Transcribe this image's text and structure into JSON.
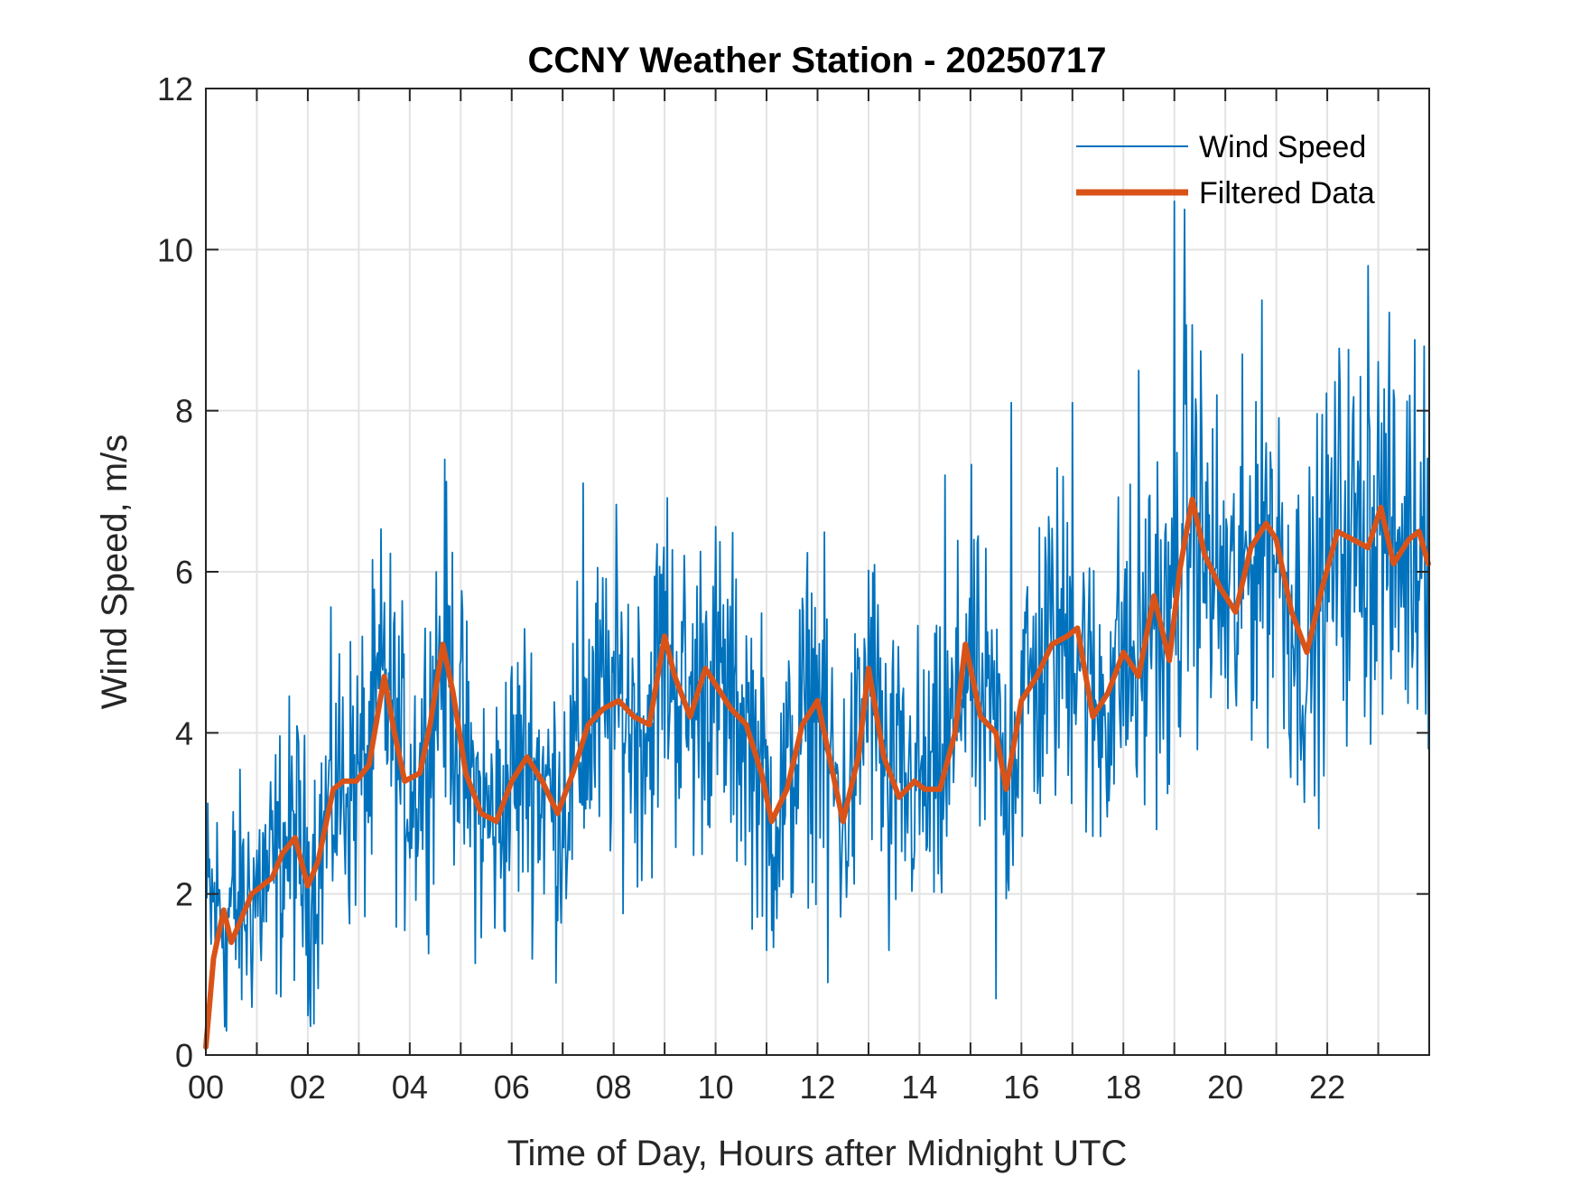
{
  "chart_data": {
    "type": "line",
    "title": "CCNY Weather Station - 20250717",
    "xlabel": "Time of Day, Hours after Midnight UTC",
    "ylabel": "Wind Speed, m/s",
    "xlim": [
      0,
      24
    ],
    "ylim": [
      0,
      12
    ],
    "grid": true,
    "legend_position": "top-right",
    "x_ticks": [
      0,
      1,
      2,
      3,
      4,
      5,
      6,
      7,
      8,
      9,
      10,
      11,
      12,
      13,
      14,
      15,
      16,
      17,
      18,
      19,
      20,
      21,
      22,
      23
    ],
    "x_tick_labels": [
      "00",
      "02",
      "04",
      "06",
      "08",
      "10",
      "12",
      "14",
      "16",
      "18",
      "20",
      "22"
    ],
    "x_tick_label_values": [
      0,
      2,
      4,
      6,
      8,
      10,
      12,
      14,
      16,
      18,
      20,
      22
    ],
    "y_ticks": [
      0,
      2,
      4,
      6,
      8,
      10,
      12
    ],
    "y_tick_labels": [
      "0",
      "2",
      "4",
      "6",
      "8",
      "10",
      "12"
    ],
    "colors": {
      "wind_speed": "#0072BD",
      "filtered": "#D95319"
    },
    "series": [
      {
        "name": "Wind Speed",
        "note": "raw 1-minute samples, noisy; amplitude envelope approximated",
        "x_range": [
          0,
          24
        ],
        "noise_amplitude": 1.4,
        "peaks": [
          {
            "x": 19.0,
            "y": 10.6
          },
          {
            "x": 19.2,
            "y": 10.5
          },
          {
            "x": 22.8,
            "y": 9.8
          },
          {
            "x": 23.9,
            "y": 8.8
          },
          {
            "x": 17.0,
            "y": 8.1
          },
          {
            "x": 15.8,
            "y": 8.1
          },
          {
            "x": 18.3,
            "y": 8.5
          },
          {
            "x": 7.4,
            "y": 7.1
          },
          {
            "x": 14.5,
            "y": 7.2
          }
        ],
        "troughs": [
          {
            "x": 12.2,
            "y": 0.9
          },
          {
            "x": 15.5,
            "y": 0.7
          },
          {
            "x": 0.4,
            "y": 0.3
          },
          {
            "x": 11.0,
            "y": 1.3
          },
          {
            "x": 13.4,
            "y": 1.3
          }
        ]
      },
      {
        "name": "Filtered Data",
        "x": [
          0.0,
          0.15,
          0.35,
          0.5,
          0.7,
          0.9,
          1.1,
          1.3,
          1.5,
          1.75,
          2.0,
          2.2,
          2.5,
          2.7,
          2.95,
          3.2,
          3.5,
          3.7,
          3.9,
          4.2,
          4.4,
          4.65,
          4.85,
          5.1,
          5.4,
          5.7,
          6.0,
          6.3,
          6.6,
          6.9,
          7.2,
          7.5,
          7.8,
          8.1,
          8.4,
          8.7,
          9.0,
          9.2,
          9.5,
          9.8,
          10.0,
          10.3,
          10.6,
          10.9,
          11.1,
          11.4,
          11.7,
          12.0,
          12.3,
          12.5,
          12.8,
          13.0,
          13.3,
          13.6,
          13.9,
          14.1,
          14.4,
          14.7,
          14.9,
          15.2,
          15.5,
          15.7,
          16.0,
          16.3,
          16.6,
          16.9,
          17.1,
          17.4,
          17.7,
          18.0,
          18.3,
          18.6,
          18.9,
          19.1,
          19.35,
          19.6,
          19.9,
          20.2,
          20.5,
          20.8,
          21.0,
          21.3,
          21.6,
          21.9,
          22.2,
          22.5,
          22.8,
          23.05,
          23.3,
          23.6,
          23.8,
          23.98
        ],
        "y": [
          0.1,
          1.2,
          1.8,
          1.4,
          1.7,
          2.0,
          2.1,
          2.2,
          2.5,
          2.7,
          2.1,
          2.4,
          3.3,
          3.4,
          3.4,
          3.6,
          4.7,
          4.0,
          3.4,
          3.5,
          4.1,
          5.1,
          4.5,
          3.5,
          3.0,
          2.9,
          3.4,
          3.7,
          3.4,
          3.0,
          3.5,
          4.1,
          4.3,
          4.4,
          4.2,
          4.1,
          5.2,
          4.7,
          4.2,
          4.8,
          4.6,
          4.3,
          4.1,
          3.5,
          2.9,
          3.3,
          4.1,
          4.4,
          3.5,
          2.9,
          3.7,
          4.8,
          3.7,
          3.2,
          3.4,
          3.3,
          3.3,
          4.0,
          5.1,
          4.2,
          4.0,
          3.3,
          4.4,
          4.7,
          5.1,
          5.2,
          5.3,
          4.2,
          4.5,
          5.0,
          4.7,
          5.7,
          4.9,
          6.0,
          6.9,
          6.2,
          5.8,
          5.5,
          6.3,
          6.6,
          6.4,
          5.5,
          5.0,
          5.8,
          6.5,
          6.4,
          6.3,
          6.8,
          6.1,
          6.4,
          6.5,
          6.1
        ]
      }
    ]
  },
  "legend": {
    "items": [
      {
        "label": "Wind Speed"
      },
      {
        "label": "Filtered Data"
      }
    ]
  }
}
